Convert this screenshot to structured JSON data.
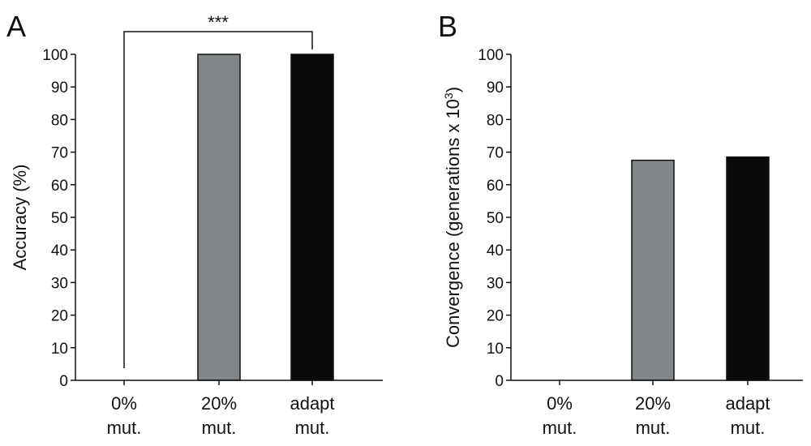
{
  "chart_data": [
    {
      "panel_label": "A",
      "type": "bar",
      "categories": [
        "0%\nmut.",
        "20%\nmut.",
        "adapt\nmut."
      ],
      "values": [
        0,
        100,
        100
      ],
      "colors": [
        "#ffffff",
        "#828689",
        "#0a0a0a"
      ],
      "ylabel": "Accuracy (%)",
      "ylabel_sup": "",
      "ylim": [
        0,
        100
      ],
      "yticks": [
        0,
        10,
        20,
        30,
        40,
        50,
        60,
        70,
        80,
        90,
        100
      ],
      "significance": {
        "from": 0,
        "to": 2,
        "label": "***"
      }
    },
    {
      "panel_label": "B",
      "type": "bar",
      "categories": [
        "0%\nmut.",
        "20%\nmut.",
        "adapt\nmut."
      ],
      "values": [
        0,
        67.5,
        68.5
      ],
      "colors": [
        "#ffffff",
        "#828689",
        "#0a0a0a"
      ],
      "ylabel": "Convergence (generations x 10",
      "ylabel_sup": "3",
      "ylabel_end": ")",
      "ylim": [
        0,
        100
      ],
      "yticks": [
        0,
        10,
        20,
        30,
        40,
        50,
        60,
        70,
        80,
        90,
        100
      ]
    }
  ]
}
